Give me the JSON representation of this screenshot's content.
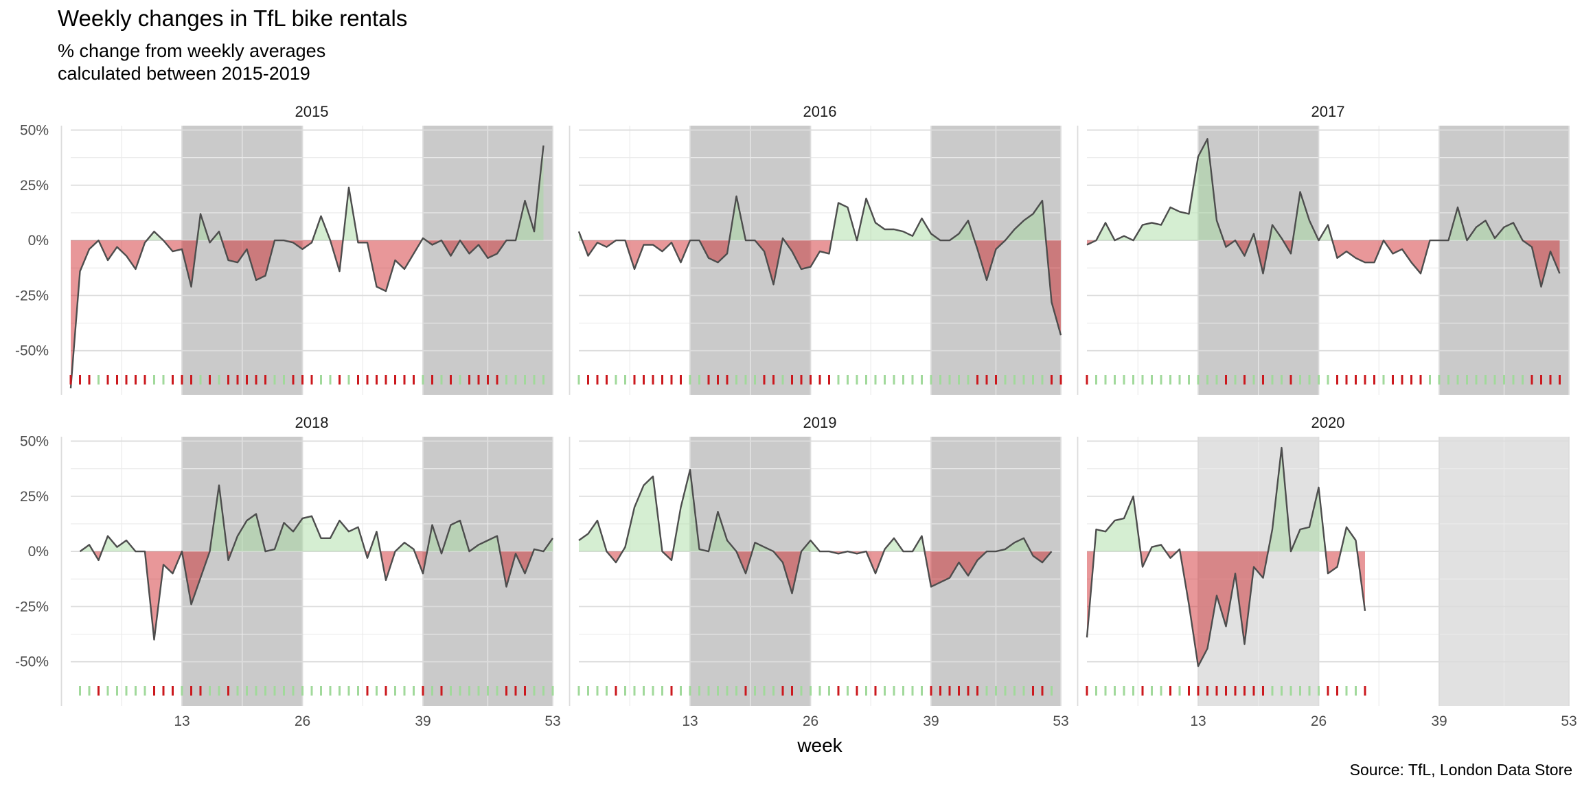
{
  "chart_data": {
    "type": "area",
    "title": "Weekly changes in TfL bike rentals",
    "subtitle": "% change from weekly averages\n calculated between 2015-2019",
    "caption": "Source: TfL, London Data Store",
    "xlabel": "week",
    "ylabel": "",
    "xlim": [
      1,
      53
    ],
    "ylim": [
      -70,
      52
    ],
    "x_ticks": [
      13,
      26,
      39,
      53
    ],
    "y_ticks": [
      50,
      25,
      0,
      -25,
      -50
    ],
    "y_tick_labels": [
      "50%",
      "25%",
      "0%",
      "-25%",
      "-50%"
    ],
    "shaded_week_ranges": [
      [
        13,
        26
      ],
      [
        39,
        53
      ]
    ],
    "grid": true,
    "colors": {
      "positive": "#a1d99b",
      "negative": "#cb181d",
      "line": "#4d4d4d",
      "shade_full_year": "#999999",
      "shade_partial_year": "#bdbdbd",
      "grid": "#ebebeb"
    },
    "panels": [
      {
        "year": "2015",
        "x": [
          1,
          2,
          3,
          4,
          5,
          6,
          7,
          8,
          9,
          10,
          11,
          12,
          13,
          14,
          15,
          16,
          17,
          18,
          19,
          20,
          21,
          22,
          23,
          24,
          25,
          26,
          27,
          28,
          29,
          30,
          31,
          32,
          33,
          34,
          35,
          36,
          37,
          38,
          39,
          40,
          41,
          42,
          43,
          44,
          45,
          46,
          47,
          48,
          49,
          50,
          51,
          52,
          53
        ],
        "values": [
          -67,
          -14,
          -4,
          0,
          -9,
          -3,
          -7,
          -13,
          -1,
          4,
          0,
          -5,
          -4,
          -21,
          12,
          -1,
          4,
          -9,
          -10,
          -4,
          -18,
          -16,
          0,
          0,
          -1,
          -4,
          -1,
          11,
          0,
          -14,
          24,
          -1,
          -1,
          -21,
          -23,
          -9,
          -13,
          -6,
          1,
          -2,
          0,
          -7,
          0,
          -6,
          -2,
          -8,
          -6,
          0,
          0,
          18,
          4,
          43,
          null
        ]
      },
      {
        "year": "2016",
        "x": [
          1,
          2,
          3,
          4,
          5,
          6,
          7,
          8,
          9,
          10,
          11,
          12,
          13,
          14,
          15,
          16,
          17,
          18,
          19,
          20,
          21,
          22,
          23,
          24,
          25,
          26,
          27,
          28,
          29,
          30,
          31,
          32,
          33,
          34,
          35,
          36,
          37,
          38,
          39,
          40,
          41,
          42,
          43,
          44,
          45,
          46,
          47,
          48,
          49,
          50,
          51,
          52,
          53
        ],
        "values": [
          4,
          -7,
          -1,
          -3,
          0,
          0,
          -13,
          -2,
          -2,
          -5,
          -1,
          -10,
          0,
          0,
          -8,
          -10,
          -6,
          20,
          0,
          0,
          -5,
          -20,
          1,
          -5,
          -13,
          -12,
          -5,
          -6,
          17,
          15,
          0,
          19,
          8,
          5,
          5,
          4,
          2,
          10,
          3,
          0,
          0,
          3,
          9,
          -4,
          -18,
          -4,
          0,
          5,
          9,
          12,
          18,
          -28,
          -43
        ]
      },
      {
        "year": "2017",
        "x": [
          1,
          2,
          3,
          4,
          5,
          6,
          7,
          8,
          9,
          10,
          11,
          12,
          13,
          14,
          15,
          16,
          17,
          18,
          19,
          20,
          21,
          22,
          23,
          24,
          25,
          26,
          27,
          28,
          29,
          30,
          31,
          32,
          33,
          34,
          35,
          36,
          37,
          38,
          39,
          40,
          41,
          42,
          43,
          44,
          45,
          46,
          47,
          48,
          49,
          50,
          51,
          52,
          53
        ],
        "values": [
          -2,
          0,
          8,
          0,
          2,
          0,
          7,
          8,
          7,
          15,
          13,
          12,
          38,
          46,
          9,
          -3,
          0,
          -7,
          3,
          -15,
          7,
          1,
          -6,
          22,
          9,
          0,
          7,
          -8,
          -5,
          -8,
          -10,
          -10,
          0,
          -6,
          -4,
          -10,
          -15,
          0,
          0,
          0,
          15,
          0,
          6,
          9,
          1,
          6,
          8,
          0,
          -3,
          -21,
          -5,
          -15,
          null
        ]
      },
      {
        "year": "2018",
        "x": [
          1,
          2,
          3,
          4,
          5,
          6,
          7,
          8,
          9,
          10,
          11,
          12,
          13,
          14,
          15,
          16,
          17,
          18,
          19,
          20,
          21,
          22,
          23,
          24,
          25,
          26,
          27,
          28,
          29,
          30,
          31,
          32,
          33,
          34,
          35,
          36,
          37,
          38,
          39,
          40,
          41,
          42,
          43,
          44,
          45,
          46,
          47,
          48,
          49,
          50,
          51,
          52,
          53
        ],
        "values": [
          null,
          0,
          3,
          -4,
          7,
          2,
          5,
          0,
          0,
          -40,
          -6,
          -10,
          0,
          -24,
          -12,
          0,
          30,
          -4,
          7,
          14,
          17,
          0,
          1,
          13,
          9,
          15,
          16,
          6,
          6,
          14,
          9,
          11,
          -3,
          9,
          -13,
          0,
          4,
          1,
          -10,
          12,
          -1,
          12,
          14,
          0,
          3,
          5,
          7,
          -16,
          -1,
          -10,
          1,
          0,
          6
        ]
      },
      {
        "year": "2019",
        "x": [
          1,
          2,
          3,
          4,
          5,
          6,
          7,
          8,
          9,
          10,
          11,
          12,
          13,
          14,
          15,
          16,
          17,
          18,
          19,
          20,
          21,
          22,
          23,
          24,
          25,
          26,
          27,
          28,
          29,
          30,
          31,
          32,
          33,
          34,
          35,
          36,
          37,
          38,
          39,
          40,
          41,
          42,
          43,
          44,
          45,
          46,
          47,
          48,
          49,
          50,
          51,
          52,
          53
        ],
        "values": [
          5,
          8,
          14,
          0,
          -5,
          2,
          20,
          30,
          34,
          0,
          -4,
          20,
          37,
          1,
          0,
          18,
          5,
          0,
          -10,
          4,
          2,
          0,
          -5,
          -19,
          0,
          5,
          0,
          0,
          -1,
          0,
          -1,
          0,
          -10,
          1,
          6,
          0,
          0,
          7,
          -16,
          -14,
          -12,
          -5,
          -11,
          -4,
          0,
          0,
          1,
          4,
          6,
          -2,
          -5,
          0,
          null
        ]
      },
      {
        "year": "2020",
        "x": [
          1,
          2,
          3,
          4,
          5,
          6,
          7,
          8,
          9,
          10,
          11,
          12,
          13,
          14,
          15,
          16,
          17,
          18,
          19,
          20,
          21,
          22,
          23,
          24,
          25,
          26,
          27,
          28,
          29,
          30,
          31
        ],
        "values": [
          -39,
          10,
          9,
          14,
          15,
          25,
          -7,
          2,
          3,
          -3,
          1,
          -24,
          -52,
          -44,
          -20,
          -34,
          -10,
          -42,
          -7,
          -12,
          10,
          47,
          0,
          10,
          11,
          29,
          -10,
          -7,
          11,
          5,
          -27
        ]
      }
    ]
  }
}
